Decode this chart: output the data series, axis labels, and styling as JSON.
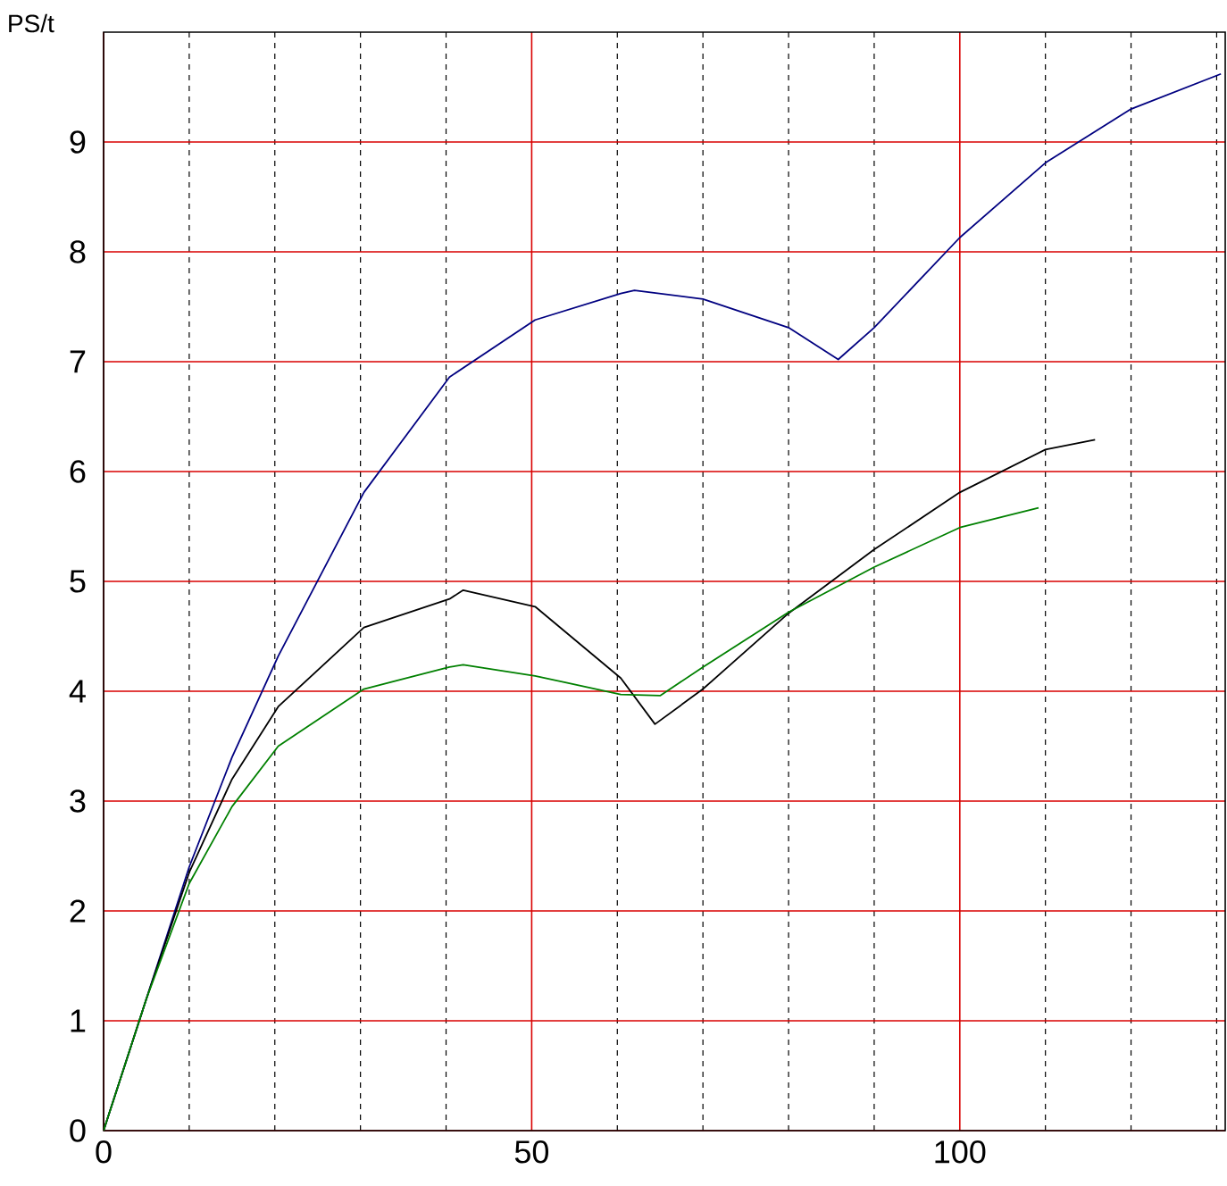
{
  "chart_data": {
    "type": "line",
    "ylabel": "PS/t",
    "xlim": [
      0,
      131
    ],
    "ylim": [
      0,
      10
    ],
    "xticks": [
      0,
      {
        "value": 10,
        "label": null
      },
      {
        "value": 20,
        "label": null
      },
      {
        "value": 30,
        "label": null
      },
      {
        "value": 40,
        "label": null
      },
      50,
      {
        "value": 60,
        "label": null
      },
      {
        "value": 70,
        "label": null
      },
      {
        "value": 80,
        "label": null
      },
      {
        "value": 90,
        "label": null
      },
      100,
      {
        "value": 110,
        "label": null
      },
      {
        "value": 120,
        "label": null
      },
      {
        "value": 130,
        "label": null
      }
    ],
    "yticks": [
      0,
      1,
      2,
      3,
      4,
      5,
      6,
      7,
      8,
      9
    ],
    "grid": true,
    "marker": "none",
    "line_style": "solid",
    "series": [
      {
        "color": "#000080",
        "x": [
          0,
          5,
          10,
          15,
          20.4,
          30.4,
          40.4,
          50.4,
          60.4,
          62,
          70,
          80,
          85.8,
          90,
          100,
          110,
          120,
          130.5
        ],
        "values": [
          0,
          1.2,
          2.4,
          3.4,
          4.32,
          5.81,
          6.86,
          7.38,
          7.62,
          7.65,
          7.57,
          7.31,
          7.02,
          7.31,
          8.13,
          8.81,
          9.3,
          9.62
        ]
      },
      {
        "color": "#000000",
        "x": [
          0,
          5,
          10,
          15,
          20.4,
          30.4,
          40.4,
          42,
          50.4,
          60.4,
          64.4,
          70,
          80,
          90,
          100,
          110,
          115.8
        ],
        "values": [
          0,
          1.2,
          2.35,
          3.2,
          3.86,
          4.58,
          4.84,
          4.92,
          4.77,
          4.12,
          3.7,
          4.02,
          4.71,
          5.29,
          5.81,
          6.2,
          6.29
        ]
      },
      {
        "color": "#008000",
        "x": [
          0,
          5,
          10,
          15,
          20.4,
          30.4,
          40.4,
          42,
          50.4,
          60.4,
          65,
          70,
          80,
          90,
          100,
          109.2
        ],
        "values": [
          0,
          1.2,
          2.25,
          2.95,
          3.5,
          4.02,
          4.22,
          4.24,
          4.14,
          3.97,
          3.96,
          4.22,
          4.72,
          5.13,
          5.49,
          5.67
        ]
      }
    ]
  }
}
